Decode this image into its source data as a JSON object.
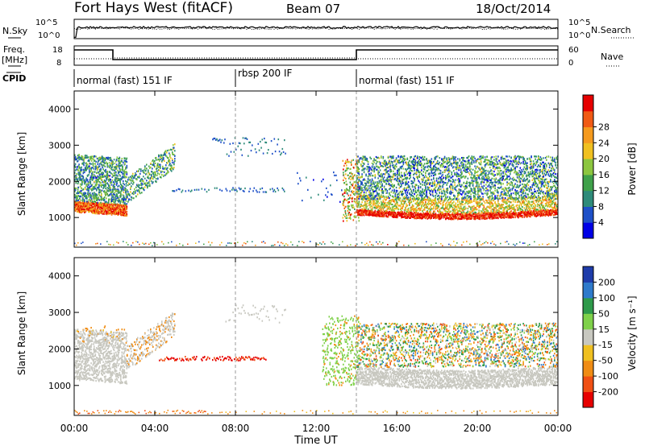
{
  "header": {
    "station": "Fort Hays West (fitACF)",
    "beam": "Beam 07",
    "date": "18/Oct/2014"
  },
  "sky_panel": {
    "left_label": "N.Sky",
    "right_label": "N.Search",
    "left_ticks": [
      "10^5",
      "10^0"
    ],
    "right_ticks": [
      "10^5",
      "10^0"
    ]
  },
  "freq_panel": {
    "left_label": "Freq.",
    "left_units": "[MHz]",
    "right_label": "Nave",
    "left_ticks": [
      "18",
      "8"
    ],
    "right_ticks": [
      "60",
      "0"
    ]
  },
  "cpid": {
    "label": "CPID",
    "segments": [
      {
        "label": "normal (fast) 151 IF",
        "start_h": 0.0,
        "end_h": 8.0
      },
      {
        "label": "rbsp 200 IF",
        "start_h": 8.0,
        "end_h": 14.0
      },
      {
        "label": "normal (fast) 151 IF",
        "start_h": 14.0,
        "end_h": 24.0
      }
    ]
  },
  "chart_data": [
    {
      "type": "heatmap",
      "name": "Power",
      "xlabel": "Time UT",
      "ylabel": "Slant Range [km]",
      "xlim": [
        0,
        24
      ],
      "ylim": [
        180,
        4500
      ],
      "x_ticks": [
        "00:00",
        "04:00",
        "08:00",
        "12:00",
        "16:00",
        "20:00",
        "00:00"
      ],
      "y_ticks": [
        1000,
        2000,
        3000,
        4000
      ],
      "colorbar": {
        "label": "Power [dB]",
        "ticks": [
          4,
          8,
          12,
          16,
          20,
          24,
          28
        ],
        "range": [
          0,
          30
        ],
        "colors": [
          "#0000e6",
          "#1e50c8",
          "#2e8b7a",
          "#3fa14a",
          "#8cc63f",
          "#f0c020",
          "#f59a1e",
          "#f05a14",
          "#e60000"
        ]
      },
      "features": [
        {
          "label": "main F-region echo band",
          "start_h": 0.0,
          "end_h": 2.0,
          "range_km": [
            1150,
            1450
          ],
          "power_db": 26
        },
        {
          "label": "main F-region echo band",
          "start_h": 14.0,
          "end_h": 24.0,
          "range_km": [
            1000,
            1350
          ],
          "power_db": 28
        },
        {
          "label": "far range scatter",
          "start_h": 14.0,
          "end_h": 24.0,
          "range_km": [
            1600,
            2700
          ],
          "power_db": 12
        },
        {
          "label": "weak midday echoes",
          "start_h": 4.8,
          "end_h": 10.5,
          "range_km": [
            1650,
            3200
          ],
          "power_db": 6
        }
      ]
    },
    {
      "type": "heatmap",
      "name": "Velocity",
      "xlabel": "Time UT",
      "ylabel": "Slant Range [km]",
      "xlim": [
        0,
        24
      ],
      "ylim": [
        180,
        4500
      ],
      "x_ticks": [
        "00:00",
        "04:00",
        "08:00",
        "12:00",
        "16:00",
        "20:00",
        "00:00"
      ],
      "y_ticks": [
        1000,
        2000,
        3000,
        4000
      ],
      "colorbar": {
        "label": "Velocity [m s⁻¹]",
        "ticks": [
          "200",
          "100",
          "50",
          "15",
          "-15",
          "-50",
          "-100",
          "-200"
        ],
        "colors": [
          "#1e3caa",
          "#2e7acb",
          "#2e9a4a",
          "#7fd14a",
          "#c8c8c0",
          "#f0c020",
          "#f08c14",
          "#f05014",
          "#e60000"
        ]
      },
      "features": [
        {
          "label": "ground scatter",
          "start_h": 0.0,
          "end_h": 24.0,
          "velocity_ms": 0
        },
        {
          "label": "negative velocity band",
          "start_h": 4.2,
          "end_h": 9.5,
          "range_km": [
            1650,
            1800
          ],
          "velocity_ms": -200
        },
        {
          "label": "positive velocity streak",
          "start_h": 12.5,
          "end_h": 14.1,
          "range_km": [
            1000,
            2900
          ],
          "velocity_ms": 50
        }
      ]
    }
  ]
}
